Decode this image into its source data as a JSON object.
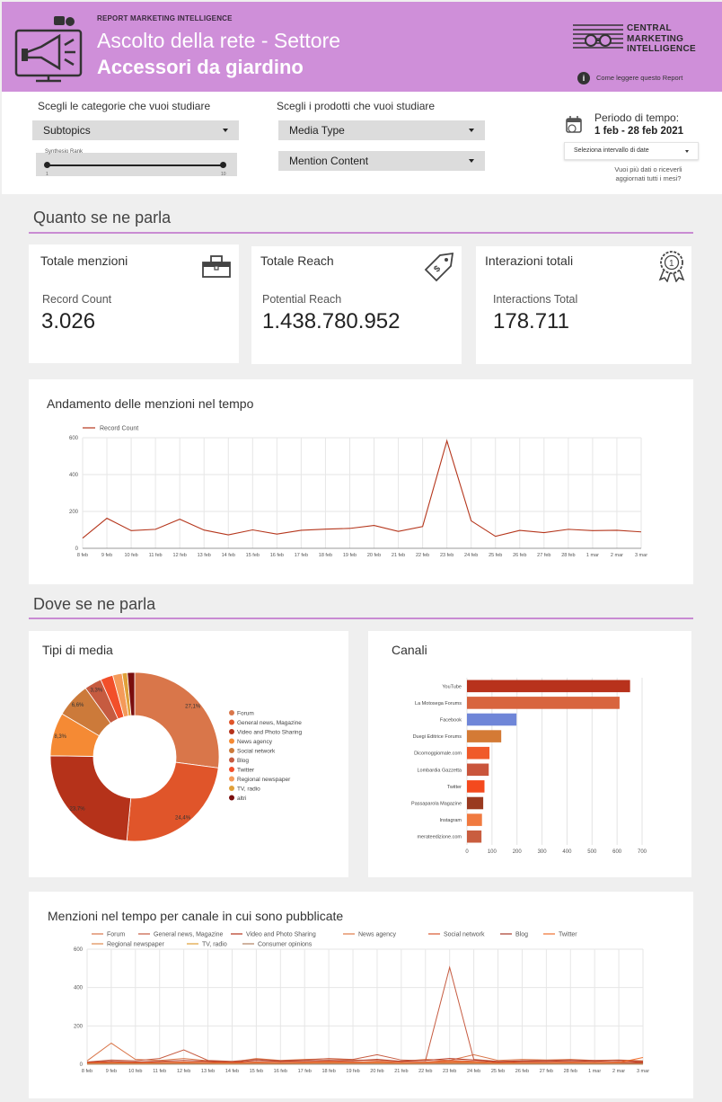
{
  "header": {
    "kicker": "REPORT MARKETING INTELLIGENCE",
    "title_line1": "Ascolto della rete - Settore",
    "title_line2": "Accessori da giardino",
    "brand_line1": "CENTRAL",
    "brand_line2": "MARKETING",
    "brand_line3": "INTELLIGENCE",
    "how_to_read": "Come leggere questo Report"
  },
  "filters": {
    "categories_label": "Scegli le categorie che vuoi studiare",
    "products_label": "Scegli i prodotti che vuoi studiare",
    "subtopics": "Subtopics",
    "media_type": "Media Type",
    "mention_content": "Mention Content",
    "slider_label": "Synthesio Rank",
    "slider_min": "1",
    "slider_max": "10",
    "period_label": "Periodo di tempo:",
    "period_value": "1 feb - 28 feb 2021",
    "date_select": "Seleziona intervallo di date",
    "more_data": "Vuoi più dati o riceverli aggiornati tutti i mesi?"
  },
  "section1": {
    "title": "Quanto se ne parla"
  },
  "kpis": [
    {
      "title": "Totale menzioni",
      "label": "Record Count",
      "value": "3.026",
      "icon": "toolbox-icon"
    },
    {
      "title": "Totale Reach",
      "label": "Potential Reach",
      "value": "1.438.780.952",
      "icon": "price-tag-icon"
    },
    {
      "title": "Interazioni totali",
      "label": "Interactions Total",
      "value": "178.711",
      "icon": "award-ribbon-icon"
    }
  ],
  "trend": {
    "title": "Andamento delle menzioni nel tempo",
    "legend": "Record Count"
  },
  "section2": {
    "title": "Dove se ne parla"
  },
  "media_types": {
    "title": "Tipi di media",
    "legend": [
      "Forum",
      "General news, Magazine",
      "Video and Photo Sharing",
      "News agency",
      "Social network",
      "Blog",
      "Twitter",
      "Regional newspaper",
      "TV, radio",
      "altri"
    ]
  },
  "channels": {
    "title": "Canali"
  },
  "timeline": {
    "title": "Menzioni nel tempo per canale in cui sono pubblicate",
    "legend": [
      "Forum",
      "General news, Magazine",
      "Video and Photo Sharing",
      "News agency",
      "Social network",
      "Blog",
      "Twitter",
      "Regional newspaper",
      "TV, radio",
      "Consumer opinions"
    ]
  },
  "colors": {
    "header_bg": "#cf8fd9",
    "accent_line": "#c98bd3",
    "line_series": "#b5361c"
  },
  "chart_data": [
    {
      "type": "line",
      "title": "Andamento delle menzioni nel tempo",
      "x": [
        "8 feb",
        "9 feb",
        "10 feb",
        "11 feb",
        "12 feb",
        "13 feb",
        "14 feb",
        "15 feb",
        "16 feb",
        "17 feb",
        "18 feb",
        "19 feb",
        "20 feb",
        "21 feb",
        "22 feb",
        "23 feb",
        "24 feb",
        "25 feb",
        "26 feb",
        "27 feb",
        "28 feb",
        "1 mar",
        "2 mar",
        "3 mar"
      ],
      "series": [
        {
          "name": "Record Count",
          "values": [
            55,
            163,
            96,
            103,
            158,
            99,
            73,
            100,
            77,
            98,
            104,
            108,
            124,
            92,
            118,
            583,
            149,
            65,
            97,
            85,
            103,
            96,
            98,
            89
          ]
        }
      ],
      "ylim": [
        0,
        600
      ],
      "yticks": [
        0,
        200,
        400,
        600
      ],
      "legend": "top-left"
    },
    {
      "type": "pie",
      "title": "Tipi di media",
      "labels": [
        "Forum",
        "General news, Magazine",
        "Video and Photo Sharing",
        "News agency",
        "Social network",
        "Blog",
        "Twitter",
        "Regional newspaper",
        "TV, radio",
        "altri"
      ],
      "values": [
        27.1,
        24.4,
        23.7,
        8.3,
        6.6,
        3.3,
        2.4,
        1.8,
        1.0,
        1.4
      ],
      "data_labels": [
        "27,1%",
        "24,4%",
        "23,7%",
        "8,3%",
        "6,6%",
        "3,3%",
        "",
        "",
        "",
        ""
      ],
      "colors": [
        "#d9764a",
        "#e0552a",
        "#b5321a",
        "#f58a34",
        "#cc7a3a",
        "#c65b40",
        "#f24f2a",
        "#f49a5a",
        "#e0a039",
        "#7a0e0e"
      ]
    },
    {
      "type": "bar",
      "title": "Canali",
      "orientation": "horizontal",
      "categories": [
        "YouTube",
        "La Motosega Forums",
        "Facebook",
        "Duegi Editrice Forums",
        "Dicomoggiomale.com",
        "Lombardia Gazzetta",
        "Twitter",
        "Passaparola Magazine",
        "Instagram",
        "merateedizione.com"
      ],
      "values": [
        652,
        610,
        198,
        137,
        90,
        87,
        70,
        65,
        60,
        58
      ],
      "colors": [
        "#b8321c",
        "#d8643e",
        "#6f86d8",
        "#d47a35",
        "#f05a2a",
        "#c9553c",
        "#f44a1e",
        "#9a3a20",
        "#f07a40",
        "#c95d3f"
      ],
      "xlim": [
        0,
        700
      ],
      "xticks": [
        0,
        100,
        200,
        300,
        400,
        500,
        600,
        700
      ]
    },
    {
      "type": "line",
      "title": "Menzioni nel tempo per canale in cui sono pubblicate",
      "x": [
        "8 feb",
        "9 feb",
        "10 feb",
        "11 feb",
        "12 feb",
        "13 feb",
        "14 feb",
        "15 feb",
        "16 feb",
        "17 feb",
        "18 feb",
        "19 feb",
        "20 feb",
        "21 feb",
        "22 feb",
        "23 feb",
        "24 feb",
        "25 feb",
        "26 feb",
        "27 feb",
        "28 feb",
        "1 mar",
        "2 mar",
        "3 mar"
      ],
      "series": [
        {
          "name": "Forum",
          "values": [
            18,
            110,
            25,
            20,
            30,
            18,
            12,
            30,
            20,
            25,
            28,
            22,
            20,
            15,
            25,
            20,
            50,
            20,
            25,
            22,
            25,
            20,
            22,
            18
          ]
        },
        {
          "name": "General news, Magazine",
          "values": [
            12,
            22,
            18,
            30,
            75,
            20,
            15,
            25,
            18,
            22,
            30,
            25,
            50,
            22,
            18,
            505,
            25,
            15,
            18,
            20,
            22,
            20,
            18,
            15
          ]
        },
        {
          "name": "Video and Photo Sharing",
          "values": [
            10,
            15,
            12,
            15,
            20,
            15,
            10,
            20,
            15,
            18,
            20,
            18,
            25,
            15,
            20,
            30,
            22,
            12,
            15,
            15,
            18,
            15,
            20,
            12
          ]
        },
        {
          "name": "News agency",
          "values": [
            5,
            8,
            6,
            8,
            10,
            8,
            6,
            10,
            8,
            10,
            12,
            10,
            12,
            8,
            10,
            15,
            12,
            6,
            8,
            8,
            10,
            8,
            10,
            6
          ]
        },
        {
          "name": "Social network",
          "values": [
            8,
            10,
            8,
            10,
            12,
            10,
            8,
            12,
            10,
            12,
            15,
            12,
            14,
            10,
            12,
            20,
            15,
            8,
            10,
            10,
            12,
            10,
            12,
            8
          ]
        },
        {
          "name": "Blog",
          "values": [
            3,
            5,
            4,
            5,
            6,
            5,
            4,
            6,
            5,
            6,
            7,
            6,
            7,
            5,
            6,
            8,
            7,
            4,
            5,
            5,
            6,
            5,
            6,
            4
          ]
        },
        {
          "name": "Twitter",
          "values": [
            6,
            8,
            6,
            8,
            10,
            8,
            6,
            9,
            8,
            9,
            11,
            9,
            10,
            7,
            9,
            12,
            10,
            6,
            8,
            8,
            9,
            8,
            9,
            35
          ]
        },
        {
          "name": "Regional newspaper",
          "values": [
            2,
            3,
            2,
            3,
            4,
            3,
            2,
            4,
            3,
            4,
            5,
            4,
            5,
            3,
            4,
            6,
            5,
            2,
            3,
            3,
            4,
            3,
            4,
            2
          ]
        },
        {
          "name": "TV, radio",
          "values": [
            1,
            2,
            1,
            2,
            2,
            2,
            1,
            2,
            2,
            2,
            3,
            2,
            3,
            2,
            2,
            3,
            3,
            1,
            2,
            2,
            2,
            2,
            2,
            1
          ]
        },
        {
          "name": "Consumer opinions",
          "values": [
            1,
            1,
            1,
            1,
            2,
            1,
            1,
            2,
            1,
            2,
            2,
            2,
            2,
            1,
            2,
            2,
            2,
            1,
            1,
            1,
            2,
            1,
            2,
            1
          ]
        }
      ],
      "colors": [
        "#d9764a",
        "#c65b40",
        "#b5321a",
        "#e07a45",
        "#d9582f",
        "#a83a28",
        "#f07030",
        "#e08a50",
        "#e0a039",
        "#b08060"
      ],
      "ylim": [
        0,
        600
      ],
      "yticks": [
        0,
        200,
        400,
        600
      ]
    }
  ]
}
